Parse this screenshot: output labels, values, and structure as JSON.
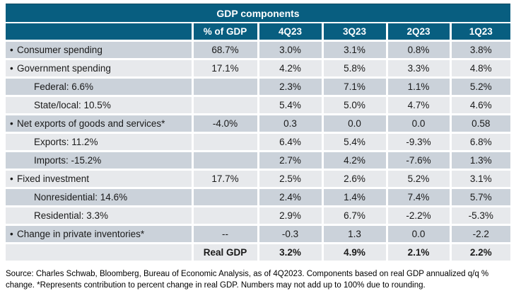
{
  "icons": {
    "bullet": "•"
  },
  "colors": {
    "header_teal": "#085E80",
    "row_dark": "#CBD2DA",
    "row_light": "#E7E9EC",
    "separator": "#FFFFFF",
    "text": "#1A1A1A"
  },
  "chart_data": {
    "type": "table",
    "title": "GDP components",
    "columns": [
      "",
      "% of GDP",
      "4Q23",
      "3Q23",
      "2Q23",
      "1Q23"
    ],
    "rows": [
      {
        "label": "Consumer spending",
        "bullet": true,
        "pct_of_gdp": "68.7%",
        "values": [
          "3.0%",
          "3.1%",
          "0.8%",
          "3.8%"
        ]
      },
      {
        "label": "Government spending",
        "bullet": true,
        "pct_of_gdp": "17.1%",
        "values": [
          "4.2%",
          "5.8%",
          "3.3%",
          "4.8%"
        ]
      },
      {
        "label": "Federal: 6.6%",
        "bullet": false,
        "pct_of_gdp": "",
        "values": [
          "2.3%",
          "7.1%",
          "1.1%",
          "5.2%"
        ]
      },
      {
        "label": "State/local: 10.5%",
        "bullet": false,
        "pct_of_gdp": "",
        "values": [
          "5.4%",
          "5.0%",
          "4.7%",
          "4.6%"
        ]
      },
      {
        "label": "Net exports of goods and services*",
        "bullet": true,
        "pct_of_gdp": "-4.0%",
        "values": [
          "0.3",
          "0.0",
          "0.0",
          "0.58"
        ]
      },
      {
        "label": "Exports: 11.2%",
        "bullet": false,
        "pct_of_gdp": "",
        "values": [
          "6.4%",
          "5.4%",
          "-9.3%",
          "6.8%"
        ]
      },
      {
        "label": "Imports: -15.2%",
        "bullet": false,
        "pct_of_gdp": "",
        "values": [
          "2.7%",
          "4.2%",
          "-7.6%",
          "1.3%"
        ]
      },
      {
        "label": "Fixed investment",
        "bullet": true,
        "pct_of_gdp": "17.7%",
        "values": [
          "2.5%",
          "2.6%",
          "5.2%",
          "3.1%"
        ]
      },
      {
        "label": "Nonresidential: 14.6%",
        "bullet": false,
        "pct_of_gdp": "",
        "values": [
          "2.4%",
          "1.4%",
          "7.4%",
          "5.7%"
        ]
      },
      {
        "label": "Residential: 3.3%",
        "bullet": false,
        "pct_of_gdp": "",
        "values": [
          "2.9%",
          "6.7%",
          "-2.2%",
          "-5.3%"
        ]
      },
      {
        "label": "Change in private inventories*",
        "bullet": true,
        "pct_of_gdp": "--",
        "values": [
          "-0.3",
          "1.3",
          "0.0",
          "-2.2"
        ]
      },
      {
        "label": "",
        "bullet": false,
        "pct_of_gdp": "Real GDP",
        "values": [
          "3.2%",
          "4.9%",
          "2.1%",
          "2.2%"
        ]
      }
    ],
    "footnote": "Source: Charles Schwab, Bloomberg, Bureau of Economic Analysis, as of 4Q2023. Components based on real GDP annualized q/q % change. *Represents contribution to percent change in real GDP. Numbers may not add up to 100% due to rounding."
  }
}
